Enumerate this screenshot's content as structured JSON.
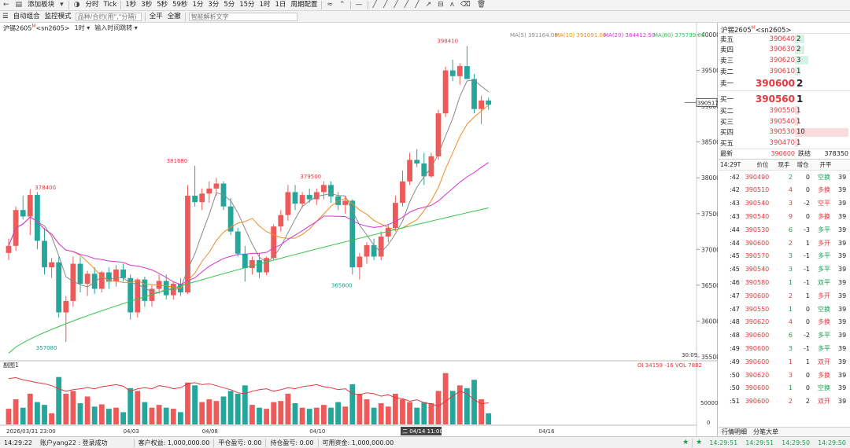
{
  "toolbar1": {
    "add_block": "添加板块",
    "period_fenshi": "分时",
    "period_tick": "Tick",
    "periods": [
      "1秒",
      "3秒",
      "5秒",
      "59秒",
      "1分",
      "3分",
      "5分",
      "15分",
      "1时",
      "1日",
      "周期配置"
    ]
  },
  "toolbar2": {
    "auto_combo": "自动组合",
    "monitor_mode": "监控模式",
    "code_placeholder": "品种/合约(用\",\"分隔)",
    "btn_all_price": "全平",
    "btn_all_cancel": "全撤",
    "ai_placeholder": "智能解析文字"
  },
  "chart": {
    "symbol": "沪锡2605",
    "symbol_sup": "M",
    "contract": "<sn2605>",
    "period": "1时",
    "time_input": "输入时间跳转",
    "ma_legend": [
      {
        "text": "MA(5) 391164.00",
        "color": "#888888"
      },
      {
        "text": "MA(10) 391091.00",
        "color": "#f08a24"
      },
      {
        "text": "MA(20) 384412.50",
        "color": "#d633d6"
      },
      {
        "text": "MA(60) 375799.00",
        "color": "#33c24a"
      }
    ],
    "price_ticks": [
      "400000",
      "395000",
      "390000",
      "385000",
      "380000",
      "375000",
      "370000",
      "365000",
      "360000",
      "355000"
    ],
    "current_price_label": "390517",
    "time_corner": "30:09",
    "annotations": [
      {
        "text": "378400",
        "color": "#e0393e"
      },
      {
        "text": "357080",
        "color": "#1a9e8f"
      },
      {
        "text": "381680",
        "color": "#e0393e"
      },
      {
        "text": "379500",
        "color": "#e0393e"
      },
      {
        "text": "365800",
        "color": "#1a9e8f"
      },
      {
        "text": "398410",
        "color": "#e0393e"
      }
    ],
    "sub_title": "副图1",
    "oi_legend": "OI 34159 -16 VOL 7882",
    "vol_ticks": [
      "50000",
      "0"
    ],
    "date_labels": [
      "2026/03/31 23:00",
      "04/03",
      "04/08",
      "04/10",
      "04/16"
    ],
    "cursor_date": "二 04/14 11:00"
  },
  "orderbook": {
    "title": "沪锡2605",
    "title_sup": "M",
    "contract": "<sn2605>",
    "asks": [
      {
        "label": "卖五",
        "price": "390640",
        "qty": "2",
        "bar": 0.18
      },
      {
        "label": "卖四",
        "price": "390630",
        "qty": "2",
        "bar": 0.18
      },
      {
        "label": "卖三",
        "price": "390620",
        "qty": "3",
        "bar": 0.25
      },
      {
        "label": "卖二",
        "price": "390610",
        "qty": "1",
        "bar": 0.1
      },
      {
        "label": "卖一",
        "price": "390600",
        "qty": "2",
        "bar": 0
      }
    ],
    "bids": [
      {
        "label": "买一",
        "price": "390560",
        "qty": "1",
        "bar": 0
      },
      {
        "label": "买二",
        "price": "390550",
        "qty": "1",
        "bar": 0.08
      },
      {
        "label": "买三",
        "price": "390540",
        "qty": "1",
        "bar": 0.08
      },
      {
        "label": "买四",
        "price": "390530",
        "qty": "10",
        "bar": 1.0
      },
      {
        "label": "买五",
        "price": "390470",
        "qty": "1",
        "bar": 0.08
      }
    ],
    "last_label": "最新",
    "last_price": "390600",
    "change_label": "跌结",
    "change_value": "378350"
  },
  "ticks": {
    "head_time": "14:29",
    "head_t": "T",
    "head_price": "价位",
    "head_qty": "现手",
    "head_inc": "增仓",
    "head_type": "开平",
    "rows": [
      {
        "t": ":42",
        "p": "390490",
        "q": "2",
        "d": "0",
        "k": "空换",
        "kc": "#1a9e55",
        "x": "39"
      },
      {
        "t": ":42",
        "p": "390510",
        "q": "4",
        "d": "0",
        "k": "多换",
        "kc": "#e0393e",
        "x": "39"
      },
      {
        "t": ":43",
        "p": "390540",
        "q": "3",
        "d": "-2",
        "k": "空平",
        "kc": "#e0393e",
        "x": "39"
      },
      {
        "t": ":43",
        "p": "390540",
        "q": "9",
        "d": "0",
        "k": "多换",
        "kc": "#e0393e",
        "x": "39"
      },
      {
        "t": ":44",
        "p": "390530",
        "q": "6",
        "d": "-3",
        "k": "多平",
        "kc": "#1a9e55",
        "x": "39"
      },
      {
        "t": ":44",
        "p": "390600",
        "q": "2",
        "d": "1",
        "k": "多开",
        "kc": "#e0393e",
        "x": "39"
      },
      {
        "t": ":45",
        "p": "390570",
        "q": "3",
        "d": "-1",
        "k": "多平",
        "kc": "#1a9e55",
        "x": "39"
      },
      {
        "t": ":45",
        "p": "390540",
        "q": "3",
        "d": "-1",
        "k": "多平",
        "kc": "#1a9e55",
        "x": "39"
      },
      {
        "t": ":46",
        "p": "390580",
        "q": "1",
        "d": "-1",
        "k": "双平",
        "kc": "#1a9e55",
        "x": "39"
      },
      {
        "t": ":47",
        "p": "390600",
        "q": "2",
        "d": "1",
        "k": "多开",
        "kc": "#e0393e",
        "x": "39"
      },
      {
        "t": ":47",
        "p": "390550",
        "q": "1",
        "d": "0",
        "k": "空换",
        "kc": "#1a9e55",
        "x": "39"
      },
      {
        "t": ":48",
        "p": "390620",
        "q": "4",
        "d": "0",
        "k": "多换",
        "kc": "#e0393e",
        "x": "39"
      },
      {
        "t": ":48",
        "p": "390600",
        "q": "6",
        "d": "-2",
        "k": "多平",
        "kc": "#1a9e55",
        "x": "39"
      },
      {
        "t": ":49",
        "p": "390600",
        "q": "3",
        "d": "-1",
        "k": "多平",
        "kc": "#1a9e55",
        "x": "39"
      },
      {
        "t": ":49",
        "p": "390600",
        "q": "1",
        "d": "1",
        "k": "双开",
        "kc": "#e0393e",
        "x": "39"
      },
      {
        "t": ":50",
        "p": "390620",
        "q": "3",
        "d": "0",
        "k": "多换",
        "kc": "#e0393e",
        "x": "39"
      },
      {
        "t": ":50",
        "p": "390600",
        "q": "1",
        "d": "0",
        "k": "空换",
        "kc": "#1a9e55",
        "x": "39"
      },
      {
        "t": ":51",
        "p": "390600",
        "q": "2",
        "d": "2",
        "k": "双开",
        "kc": "#e0393e",
        "x": "39"
      }
    ],
    "tab1": "行情明细",
    "tab2": "分笔大单"
  },
  "status": {
    "time": "14:29:22",
    "account": "账户yang22 : 登录成功",
    "equity": "客户权益: 1,000,000.00",
    "close_pnl": "平仓盈亏: 0.00",
    "pos_pnl": "持仓盈亏: 0.00",
    "avail": "可用资金: 1,000,000.00",
    "clocks": [
      "14:29:51",
      "14:29:51",
      "14:29:50",
      "14:29:50"
    ]
  },
  "colors": {
    "up": "#ee5a5a",
    "down": "#26a69a",
    "ma5": "#888888",
    "ma10": "#f08a24",
    "ma20": "#d633d6",
    "ma60": "#33c24a",
    "oi": "#e0393e"
  },
  "chart_data": {
    "type": "candlestick",
    "y_range": [
      355000,
      400000
    ],
    "candles": [
      [
        369500,
        371500,
        368500,
        370500
      ],
      [
        370500,
        376000,
        369800,
        375500
      ],
      [
        375500,
        377500,
        374200,
        374600
      ],
      [
        374600,
        378400,
        372000,
        377600
      ],
      [
        377600,
        378000,
        370000,
        371200
      ],
      [
        371200,
        373000,
        366500,
        367500
      ],
      [
        367500,
        368800,
        366000,
        368200
      ],
      [
        368200,
        369000,
        360500,
        361200
      ],
      [
        361200,
        363500,
        357080,
        362800
      ],
      [
        362800,
        369000,
        362000,
        368000
      ],
      [
        368000,
        369000,
        364000,
        365200
      ],
      [
        365200,
        367000,
        363500,
        366600
      ],
      [
        366600,
        367500,
        363800,
        364500
      ],
      [
        364500,
        367000,
        364000,
        366800
      ],
      [
        366800,
        367500,
        364500,
        365500
      ],
      [
        365500,
        367800,
        364800,
        367200
      ],
      [
        367200,
        368000,
        365500,
        366000
      ],
      [
        366000,
        366500,
        360200,
        361200
      ],
      [
        361200,
        366000,
        360500,
        365800
      ],
      [
        365800,
        366200,
        362000,
        362800
      ],
      [
        362800,
        365000,
        362000,
        364500
      ],
      [
        364500,
        366500,
        363800,
        365600
      ],
      [
        365600,
        366500,
        363000,
        363600
      ],
      [
        363600,
        365500,
        363000,
        365200
      ],
      [
        365200,
        366000,
        363500,
        364000
      ],
      [
        364000,
        379000,
        363800,
        377500
      ],
      [
        377500,
        381680,
        376000,
        376600
      ],
      [
        376600,
        378500,
        375500,
        377800
      ],
      [
        377800,
        379500,
        376500,
        378500
      ],
      [
        378500,
        380000,
        377500,
        379200
      ],
      [
        379200,
        379500,
        375500,
        376000
      ],
      [
        376000,
        377200,
        372000,
        372500
      ],
      [
        372500,
        373000,
        369000,
        369400
      ],
      [
        369400,
        370500,
        365500,
        367400
      ],
      [
        367400,
        369000,
        366500,
        368500
      ],
      [
        368500,
        369500,
        366000,
        366800
      ],
      [
        366800,
        369000,
        366400,
        368800
      ],
      [
        368800,
        373500,
        368500,
        373200
      ],
      [
        373200,
        375500,
        372500,
        374800
      ],
      [
        374800,
        379000,
        374000,
        378000
      ],
      [
        378000,
        379000,
        375500,
        376400
      ],
      [
        376400,
        378000,
        375800,
        377600
      ],
      [
        377600,
        378500,
        376500,
        377000
      ],
      [
        377000,
        378500,
        376200,
        378000
      ],
      [
        378000,
        379500,
        377000,
        379000
      ],
      [
        379000,
        379500,
        376500,
        377400
      ],
      [
        377400,
        378000,
        375500,
        376200
      ],
      [
        376200,
        377500,
        375000,
        376800
      ],
      [
        376800,
        377000,
        366500,
        367500
      ],
      [
        367500,
        369500,
        365800,
        369000
      ],
      [
        369000,
        371000,
        368000,
        370600
      ],
      [
        370600,
        371500,
        368500,
        369000
      ],
      [
        369000,
        372500,
        368500,
        371800
      ],
      [
        371800,
        373500,
        371000,
        373000
      ],
      [
        373000,
        377500,
        372500,
        376500
      ],
      [
        376500,
        381000,
        376000,
        379500
      ],
      [
        379500,
        383500,
        379000,
        382500
      ],
      [
        382500,
        384000,
        381500,
        382000
      ],
      [
        382000,
        383500,
        379000,
        380200
      ],
      [
        380200,
        383500,
        380000,
        383000
      ],
      [
        383000,
        389500,
        382500,
        389000
      ],
      [
        389000,
        395500,
        388500,
        395000
      ],
      [
        395000,
        396500,
        393500,
        394200
      ],
      [
        394200,
        396000,
        393000,
        395600
      ],
      [
        395600,
        398410,
        394000,
        393800
      ],
      [
        393800,
        394500,
        389000,
        389600
      ],
      [
        389600,
        391500,
        387500,
        390800
      ],
      [
        390800,
        391200,
        389500,
        390200
      ]
    ]
  }
}
